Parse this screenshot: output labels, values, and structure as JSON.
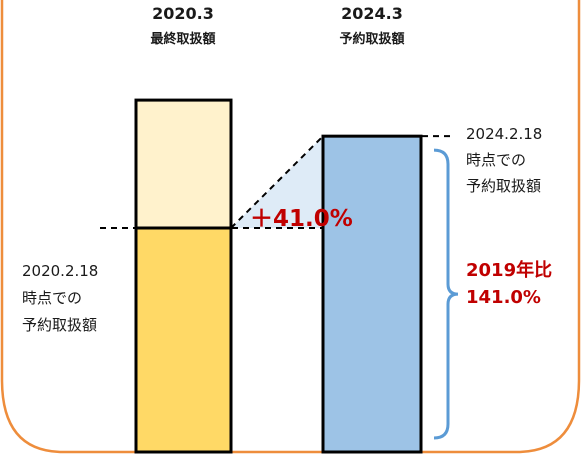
{
  "colors": {
    "frame": "#EE8D3C",
    "bar_2020_top": "#FFF2CC",
    "bar_2020_bottom": "#FFD966",
    "bar_2024": "#9DC3E6",
    "wedge": "#DEEBF7",
    "bracket": "#5B9BD5",
    "accent": "#C00000"
  },
  "chart_data": {
    "type": "bar",
    "categories": [
      "2020.3",
      "2024.3"
    ],
    "category_subtitles": [
      "最終取扱額",
      "予約取扱額"
    ],
    "baseline_label": [
      "2020.2.18",
      "時点での",
      "予約取扱額"
    ],
    "right_label": [
      "2024.2.18",
      "時点での",
      "予約取扱額"
    ],
    "increase_label": "＋41.0%",
    "ratio_label": [
      "2019年比",
      "141.0%"
    ],
    "values_relative": {
      "bar_2020_total": 157.1,
      "bar_2020_baseline": 100.0,
      "bar_2024": 141.0
    }
  }
}
